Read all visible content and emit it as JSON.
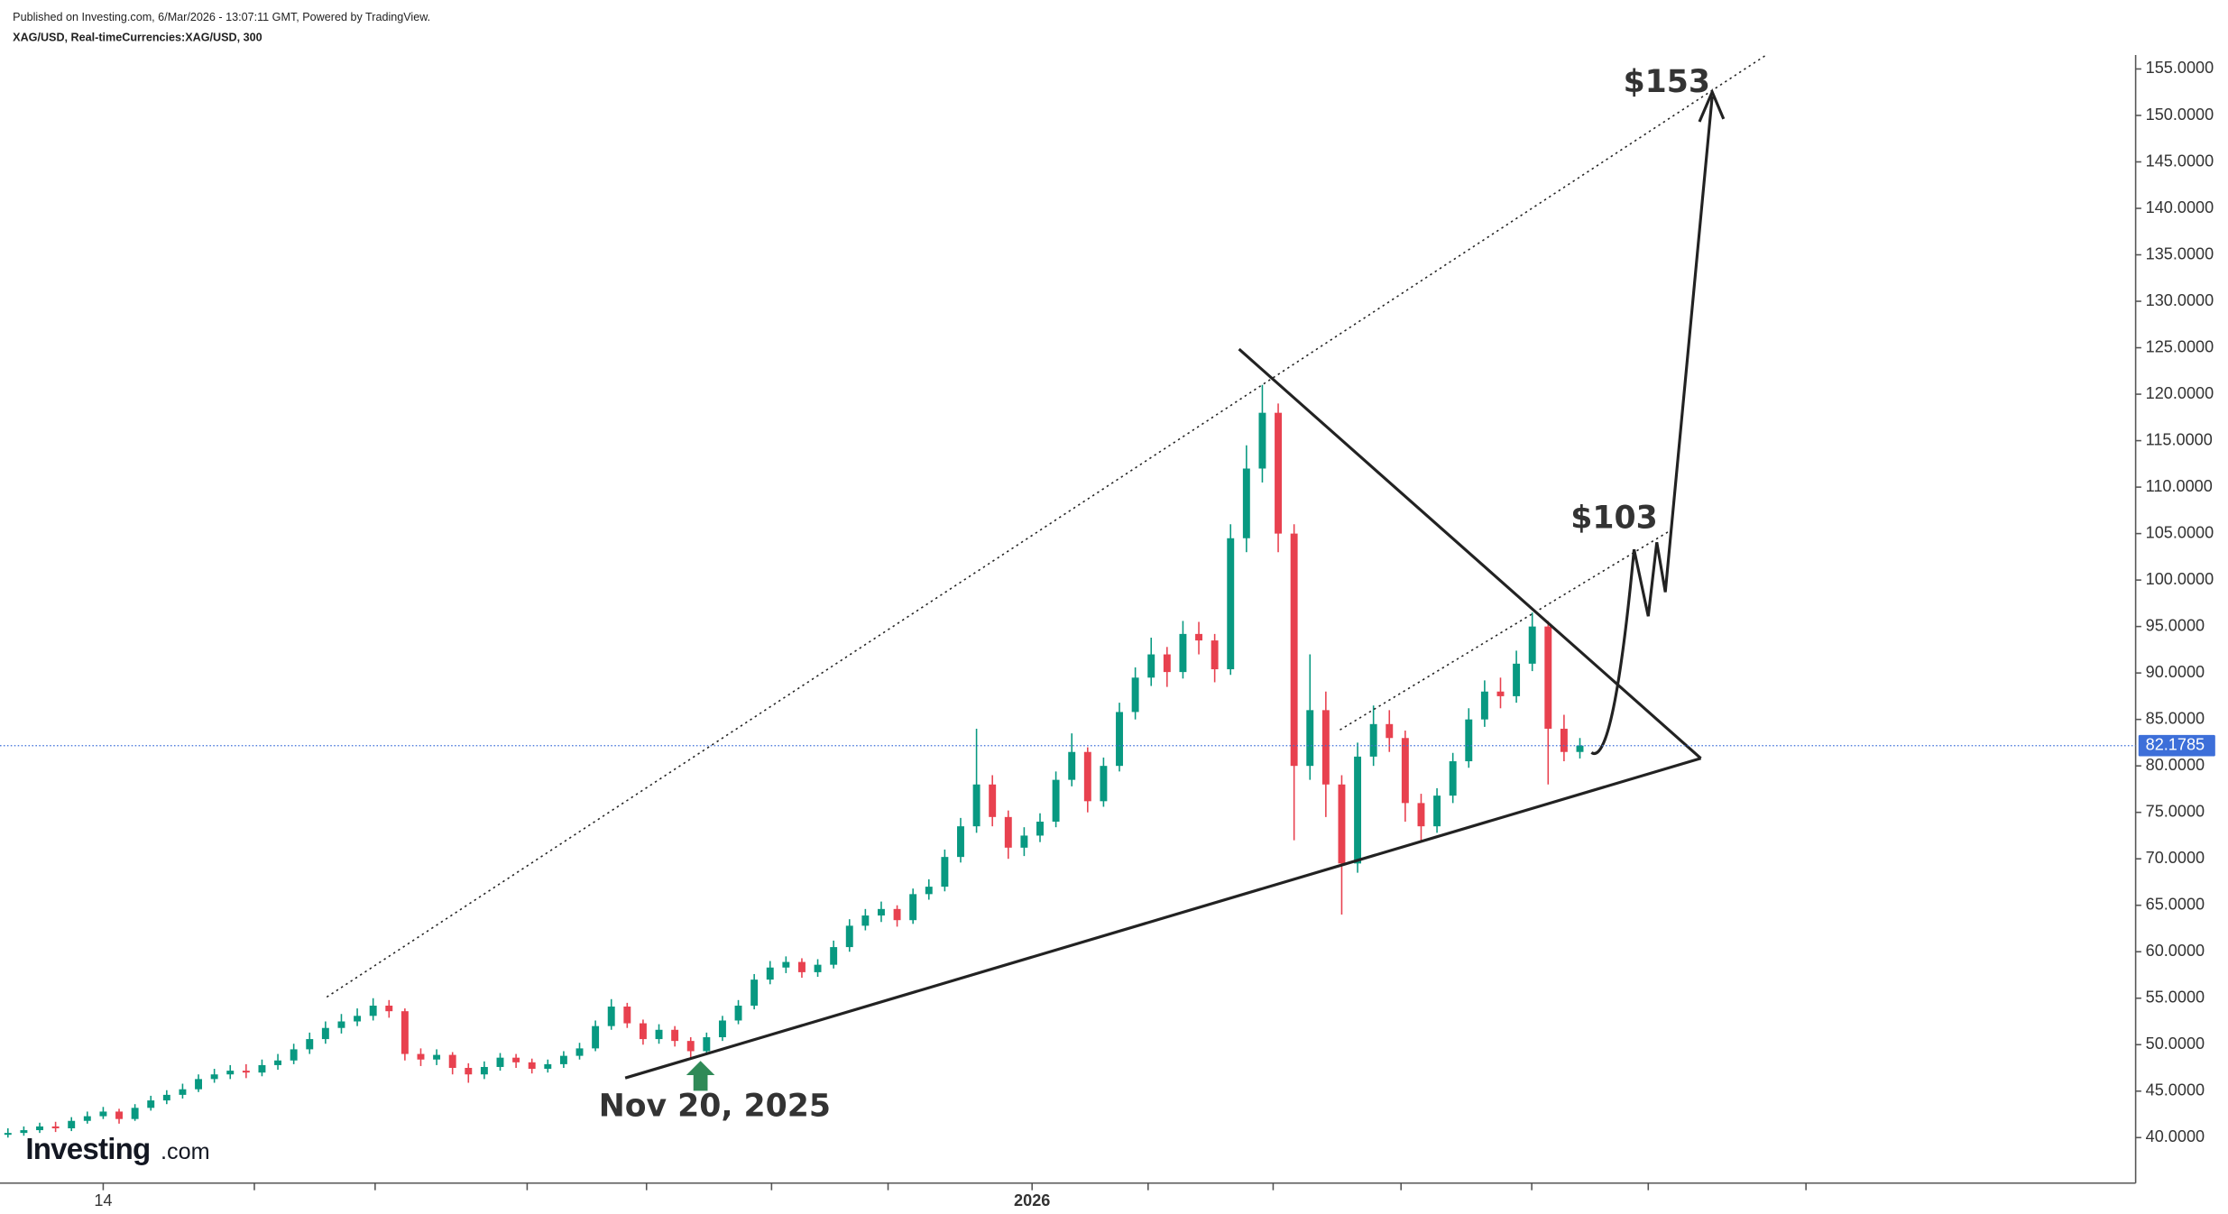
{
  "header": {
    "published": "Published on Investing.com, 6/Mar/2026 - 13:07:11 GMT, Powered by TradingView.",
    "symbol": "XAG/USD, Real-timeCurrencies:XAG/USD, 300"
  },
  "logo": {
    "brand": "Investing",
    "suffix": ".com"
  },
  "chart_data": {
    "type": "candlestick",
    "up_color": "#089981",
    "down_color": "#e8414f",
    "open": [
      40.3,
      40.5,
      40.8,
      41.2,
      41.0,
      41.8,
      42.3,
      42.8,
      42.0,
      43.2,
      44.0,
      44.6,
      45.2,
      46.3,
      46.8,
      47.2,
      47.0,
      47.8,
      48.3,
      49.5,
      50.6,
      51.8,
      52.5,
      53.1,
      54.2,
      53.6,
      49.0,
      48.4,
      48.9,
      47.5,
      46.8,
      47.6,
      48.6,
      48.1,
      47.4,
      47.9,
      48.8,
      49.6,
      52.0,
      54.1,
      52.3,
      50.6,
      51.6,
      50.4,
      49.3,
      50.8,
      52.6,
      54.2,
      57.0,
      58.3,
      58.9,
      57.8,
      58.6,
      60.5,
      62.8,
      63.9,
      64.6,
      63.4,
      66.2,
      67.0,
      70.2,
      73.5,
      78.0,
      74.5,
      71.2,
      72.5,
      74.0,
      78.5,
      81.5,
      76.2,
      80.0,
      85.8,
      89.5,
      92.0,
      90.1,
      94.2,
      93.5,
      90.4,
      104.5,
      112.0,
      118.0,
      105.0,
      80.0,
      86.0,
      78.0,
      69.5,
      81.0,
      84.5,
      83.0,
      76.0,
      73.5,
      76.8,
      80.5,
      85.0,
      88.0,
      87.5,
      91.0,
      95.0,
      84.0,
      81.5
    ],
    "high": [
      41.0,
      41.2,
      41.6,
      41.7,
      42.2,
      42.8,
      43.3,
      43.1,
      43.6,
      44.5,
      45.1,
      45.8,
      46.8,
      47.4,
      47.8,
      47.9,
      48.4,
      49.0,
      50.1,
      51.3,
      52.5,
      53.3,
      53.9,
      55.0,
      54.8,
      53.9,
      49.6,
      49.5,
      49.2,
      48.0,
      48.2,
      49.1,
      49.0,
      48.5,
      48.4,
      49.3,
      50.2,
      52.6,
      54.9,
      54.5,
      52.7,
      52.2,
      52.0,
      50.8,
      51.3,
      53.1,
      54.8,
      57.6,
      59.0,
      59.5,
      59.3,
      59.2,
      61.2,
      63.5,
      64.6,
      65.4,
      65.0,
      66.8,
      67.8,
      71.0,
      74.4,
      84.0,
      79.0,
      75.2,
      73.4,
      74.9,
      79.4,
      83.5,
      82.0,
      80.9,
      86.8,
      90.6,
      93.8,
      92.8,
      95.6,
      95.5,
      94.2,
      106.0,
      114.5,
      121.0,
      119.0,
      106.0,
      92.0,
      88.0,
      79.0,
      82.5,
      86.5,
      86.0,
      83.8,
      77.0,
      77.6,
      81.4,
      86.2,
      89.2,
      89.5,
      92.4,
      96.5,
      95.6,
      85.5,
      83.0
    ],
    "low": [
      40.0,
      40.2,
      40.5,
      40.6,
      40.7,
      41.5,
      42.0,
      41.5,
      41.8,
      42.9,
      43.6,
      44.2,
      44.9,
      45.9,
      46.3,
      46.4,
      46.6,
      47.3,
      47.9,
      49.0,
      50.1,
      51.2,
      52.0,
      52.6,
      52.9,
      48.3,
      47.7,
      47.8,
      46.8,
      45.9,
      46.3,
      47.2,
      47.5,
      46.9,
      47.0,
      47.5,
      48.4,
      49.3,
      51.6,
      51.8,
      50.0,
      50.1,
      49.8,
      48.6,
      48.9,
      50.4,
      52.2,
      53.8,
      56.5,
      57.7,
      57.2,
      57.3,
      58.2,
      60.0,
      62.3,
      63.2,
      62.7,
      63.0,
      65.6,
      66.5,
      69.6,
      72.8,
      73.5,
      70.0,
      70.3,
      71.8,
      73.4,
      77.8,
      75.0,
      75.6,
      79.4,
      85.0,
      88.6,
      88.5,
      89.4,
      92.0,
      89.0,
      89.8,
      103.0,
      110.5,
      103.0,
      72.0,
      78.5,
      74.5,
      64.0,
      68.5,
      80.0,
      81.5,
      74.0,
      72.0,
      72.8,
      76.0,
      79.8,
      84.2,
      86.2,
      86.8,
      90.2,
      78.0,
      80.5,
      80.8
    ],
    "close": [
      40.5,
      40.8,
      41.2,
      41.0,
      41.8,
      42.3,
      42.8,
      42.0,
      43.2,
      44.0,
      44.6,
      45.2,
      46.3,
      46.8,
      47.2,
      47.0,
      47.8,
      48.3,
      49.5,
      50.6,
      51.8,
      52.5,
      53.1,
      54.2,
      53.6,
      49.0,
      48.4,
      48.9,
      47.5,
      46.8,
      47.6,
      48.6,
      48.1,
      47.4,
      47.9,
      48.8,
      49.6,
      52.0,
      54.1,
      52.3,
      50.6,
      51.6,
      50.4,
      49.3,
      50.8,
      52.6,
      54.2,
      57.0,
      58.3,
      58.9,
      57.8,
      58.6,
      60.5,
      62.8,
      63.9,
      64.6,
      63.4,
      66.2,
      67.0,
      70.2,
      73.5,
      78.0,
      74.5,
      71.2,
      72.5,
      74.0,
      78.5,
      81.5,
      76.2,
      80.0,
      85.8,
      89.5,
      92.0,
      90.1,
      94.2,
      93.5,
      90.4,
      104.5,
      112.0,
      118.0,
      105.0,
      80.0,
      86.0,
      78.0,
      69.5,
      81.0,
      84.5,
      83.0,
      76.0,
      73.5,
      76.8,
      80.5,
      85.0,
      88.0,
      87.5,
      91.0,
      95.0,
      84.0,
      81.5,
      82.1785
    ],
    "xlim": [
      -0.5,
      134
    ],
    "xticks": [
      {
        "value": 6,
        "label": "14"
      },
      {
        "value": 64.5,
        "label": "2026"
      }
    ],
    "ylim": [
      35.1,
      156.5
    ],
    "yticks": [
      {
        "value": 40,
        "label": "40.0000"
      },
      {
        "value": 45,
        "label": "45.0000"
      },
      {
        "value": 50,
        "label": "50.0000"
      },
      {
        "value": 55,
        "label": "55.0000"
      },
      {
        "value": 60,
        "label": "60.0000"
      },
      {
        "value": 65,
        "label": "65.0000"
      },
      {
        "value": 70,
        "label": "70.0000"
      },
      {
        "value": 75,
        "label": "75.0000"
      },
      {
        "value": 80,
        "label": "80.0000"
      },
      {
        "value": 85,
        "label": "85.0000"
      },
      {
        "value": 90,
        "label": "90.0000"
      },
      {
        "value": 95,
        "label": "95.0000"
      },
      {
        "value": 100,
        "label": "100.0000"
      },
      {
        "value": 105,
        "label": "105.0000"
      },
      {
        "value": 110,
        "label": "110.0000"
      },
      {
        "value": 115,
        "label": "115.0000"
      },
      {
        "value": 120,
        "label": "120.0000"
      },
      {
        "value": 125,
        "label": "125.0000"
      },
      {
        "value": 130,
        "label": "130.0000"
      },
      {
        "value": 135,
        "label": "135.0000"
      },
      {
        "value": 140,
        "label": "140.0000"
      },
      {
        "value": 145,
        "label": "145.0000"
      },
      {
        "value": 150,
        "label": "150.0000"
      },
      {
        "value": 155,
        "label": "155.0000"
      }
    ],
    "price_line": {
      "value": 82.1785,
      "label": "82.1785",
      "color": "#3d6fd9"
    },
    "annotations": [
      "$153",
      "$103",
      "Nov 20, 2025"
    ]
  }
}
